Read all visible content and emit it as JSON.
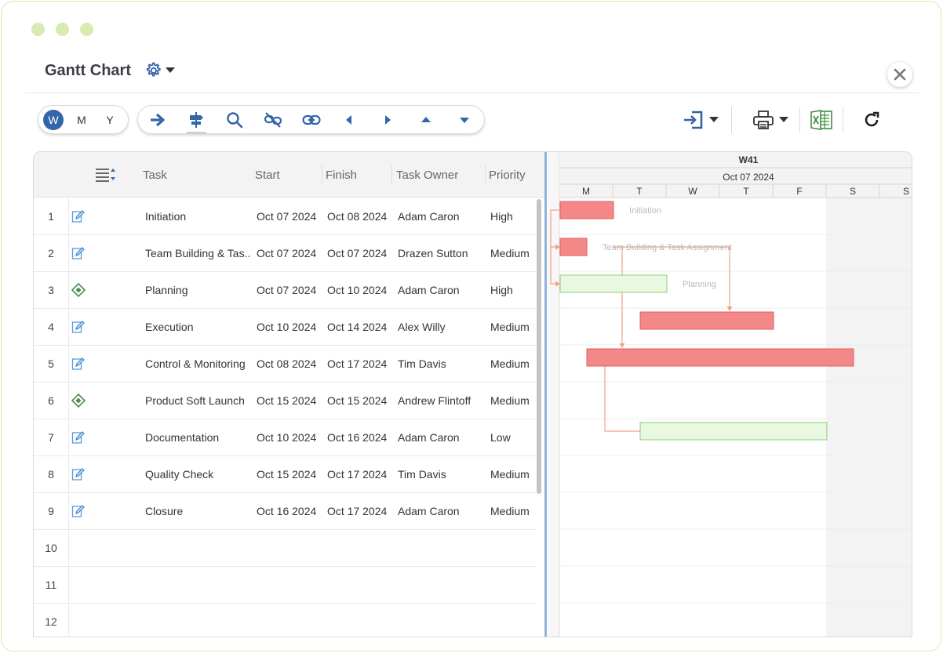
{
  "window": {
    "title": "Gantt Chart"
  },
  "view_modes": {
    "week": "W",
    "month": "M",
    "year": "Y",
    "selected": "W"
  },
  "toolbar_icons": [
    "arrow-right-icon",
    "signpost-icon",
    "search-icon",
    "unlink-icon",
    "link-icon",
    "caret-left-icon",
    "caret-right-icon",
    "caret-up-icon",
    "caret-down-icon"
  ],
  "right_toolbar_icons": [
    "import-icon",
    "print-icon",
    "excel-icon",
    "refresh-icon"
  ],
  "table": {
    "columns": [
      "Task",
      "Start",
      "Finish",
      "Task Owner",
      "Priority"
    ],
    "rows": [
      {
        "num": "1",
        "icon": "edit-task-icon",
        "task": "Initiation",
        "start": "Oct 07 2024",
        "finish": "Oct 08 2024",
        "owner": "Adam Caron",
        "priority": "High"
      },
      {
        "num": "2",
        "icon": "edit-task-icon",
        "task": "Team Building & Tas...",
        "start": "Oct 07 2024",
        "finish": "Oct 07 2024",
        "owner": "Drazen Sutton",
        "priority": "Medium"
      },
      {
        "num": "3",
        "icon": "milestone-icon",
        "task": "Planning",
        "start": "Oct 07 2024",
        "finish": "Oct 10 2024",
        "owner": "Adam Caron",
        "priority": "High"
      },
      {
        "num": "4",
        "icon": "edit-task-icon",
        "task": "Execution",
        "start": "Oct 10 2024",
        "finish": "Oct 14 2024",
        "owner": "Alex Willy",
        "priority": "Medium"
      },
      {
        "num": "5",
        "icon": "edit-task-icon",
        "task": "Control & Monitoring",
        "start": "Oct 08 2024",
        "finish": "Oct 17 2024",
        "owner": "Tim Davis",
        "priority": "Medium"
      },
      {
        "num": "6",
        "icon": "milestone-icon",
        "task": "Product Soft Launch",
        "start": "Oct 15 2024",
        "finish": "Oct 15 2024",
        "owner": "Andrew Flintoff",
        "priority": "Medium"
      },
      {
        "num": "7",
        "icon": "edit-task-icon",
        "task": "Documentation",
        "start": "Oct 10 2024",
        "finish": "Oct 16 2024",
        "owner": "Adam Caron",
        "priority": "Low"
      },
      {
        "num": "8",
        "icon": "edit-task-icon",
        "task": "Quality Check",
        "start": "Oct 15 2024",
        "finish": "Oct 17 2024",
        "owner": "Tim Davis",
        "priority": "Medium"
      },
      {
        "num": "9",
        "icon": "edit-task-icon",
        "task": "Closure",
        "start": "Oct 16 2024",
        "finish": "Oct 17 2024",
        "owner": "Adam Caron",
        "priority": "Medium"
      },
      {
        "num": "10"
      },
      {
        "num": "11"
      },
      {
        "num": "12"
      }
    ]
  },
  "timeline": {
    "week": "W41",
    "date": "Oct 07 2024",
    "days": [
      "M",
      "T",
      "W",
      "T",
      "F",
      "S",
      "S"
    ],
    "bars": [
      {
        "row": 1,
        "start_day": 0,
        "end_day": 2,
        "kind": "task",
        "label": "Initiation"
      },
      {
        "row": 2,
        "start_day": 0,
        "end_day": 1,
        "kind": "task",
        "label": "Team Building & Task Assignment"
      },
      {
        "row": 3,
        "start_day": 0,
        "end_day": 4,
        "kind": "summary",
        "label": "Planning"
      },
      {
        "row": 4,
        "start_day": 3,
        "end_day": 8,
        "kind": "task",
        "label": ""
      },
      {
        "row": 5,
        "start_day": 1,
        "end_day": 11,
        "kind": "task",
        "label": ""
      },
      {
        "row": 7,
        "start_day": 3,
        "end_day": 10,
        "kind": "summary",
        "label": ""
      }
    ]
  },
  "colors": {
    "accent": "#3465a8",
    "task_fill": "#f48787",
    "task_border": "#e06060",
    "summary_fill": "#e9f8e1",
    "summary_border": "#8dcc79",
    "link": "#f2a08a",
    "weekend": "#f3f3f3",
    "window_border": "#d8e9b0"
  }
}
